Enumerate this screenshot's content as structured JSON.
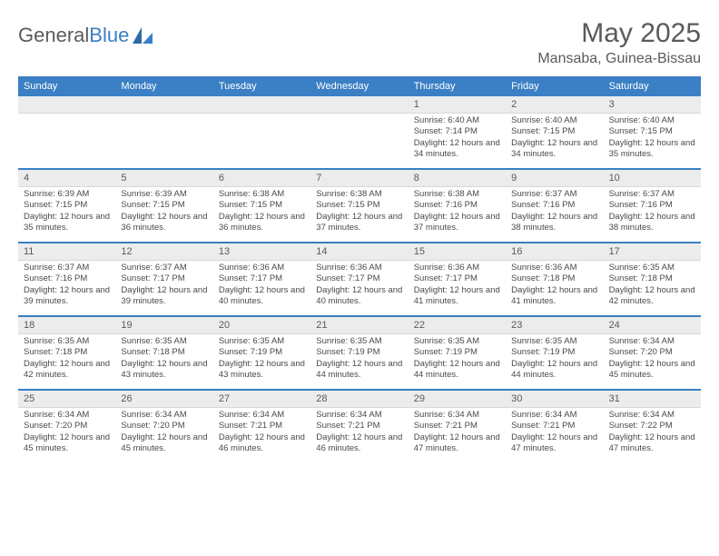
{
  "brand": {
    "name_part1": "General",
    "name_part2": "Blue"
  },
  "title": "May 2025",
  "location": "Mansaba, Guinea-Bissau",
  "weekdays": [
    "Sunday",
    "Monday",
    "Tuesday",
    "Wednesday",
    "Thursday",
    "Friday",
    "Saturday"
  ],
  "colors": {
    "header_bg": "#3b7fc4",
    "header_fg": "#ffffff",
    "daynum_bg": "#ececec",
    "rule": "#3b7fc4",
    "text": "#4a4a4a"
  },
  "grid": {
    "rows": 5,
    "cols": 7,
    "start_weekday_index": 4,
    "days_in_month": 31
  },
  "days": [
    {
      "n": 1,
      "sunrise": "6:40 AM",
      "sunset": "7:14 PM",
      "daylight": "12 hours and 34 minutes."
    },
    {
      "n": 2,
      "sunrise": "6:40 AM",
      "sunset": "7:15 PM",
      "daylight": "12 hours and 34 minutes."
    },
    {
      "n": 3,
      "sunrise": "6:40 AM",
      "sunset": "7:15 PM",
      "daylight": "12 hours and 35 minutes."
    },
    {
      "n": 4,
      "sunrise": "6:39 AM",
      "sunset": "7:15 PM",
      "daylight": "12 hours and 35 minutes."
    },
    {
      "n": 5,
      "sunrise": "6:39 AM",
      "sunset": "7:15 PM",
      "daylight": "12 hours and 36 minutes."
    },
    {
      "n": 6,
      "sunrise": "6:38 AM",
      "sunset": "7:15 PM",
      "daylight": "12 hours and 36 minutes."
    },
    {
      "n": 7,
      "sunrise": "6:38 AM",
      "sunset": "7:15 PM",
      "daylight": "12 hours and 37 minutes."
    },
    {
      "n": 8,
      "sunrise": "6:38 AM",
      "sunset": "7:16 PM",
      "daylight": "12 hours and 37 minutes."
    },
    {
      "n": 9,
      "sunrise": "6:37 AM",
      "sunset": "7:16 PM",
      "daylight": "12 hours and 38 minutes."
    },
    {
      "n": 10,
      "sunrise": "6:37 AM",
      "sunset": "7:16 PM",
      "daylight": "12 hours and 38 minutes."
    },
    {
      "n": 11,
      "sunrise": "6:37 AM",
      "sunset": "7:16 PM",
      "daylight": "12 hours and 39 minutes."
    },
    {
      "n": 12,
      "sunrise": "6:37 AM",
      "sunset": "7:17 PM",
      "daylight": "12 hours and 39 minutes."
    },
    {
      "n": 13,
      "sunrise": "6:36 AM",
      "sunset": "7:17 PM",
      "daylight": "12 hours and 40 minutes."
    },
    {
      "n": 14,
      "sunrise": "6:36 AM",
      "sunset": "7:17 PM",
      "daylight": "12 hours and 40 minutes."
    },
    {
      "n": 15,
      "sunrise": "6:36 AM",
      "sunset": "7:17 PM",
      "daylight": "12 hours and 41 minutes."
    },
    {
      "n": 16,
      "sunrise": "6:36 AM",
      "sunset": "7:18 PM",
      "daylight": "12 hours and 41 minutes."
    },
    {
      "n": 17,
      "sunrise": "6:35 AM",
      "sunset": "7:18 PM",
      "daylight": "12 hours and 42 minutes."
    },
    {
      "n": 18,
      "sunrise": "6:35 AM",
      "sunset": "7:18 PM",
      "daylight": "12 hours and 42 minutes."
    },
    {
      "n": 19,
      "sunrise": "6:35 AM",
      "sunset": "7:18 PM",
      "daylight": "12 hours and 43 minutes."
    },
    {
      "n": 20,
      "sunrise": "6:35 AM",
      "sunset": "7:19 PM",
      "daylight": "12 hours and 43 minutes."
    },
    {
      "n": 21,
      "sunrise": "6:35 AM",
      "sunset": "7:19 PM",
      "daylight": "12 hours and 44 minutes."
    },
    {
      "n": 22,
      "sunrise": "6:35 AM",
      "sunset": "7:19 PM",
      "daylight": "12 hours and 44 minutes."
    },
    {
      "n": 23,
      "sunrise": "6:35 AM",
      "sunset": "7:19 PM",
      "daylight": "12 hours and 44 minutes."
    },
    {
      "n": 24,
      "sunrise": "6:34 AM",
      "sunset": "7:20 PM",
      "daylight": "12 hours and 45 minutes."
    },
    {
      "n": 25,
      "sunrise": "6:34 AM",
      "sunset": "7:20 PM",
      "daylight": "12 hours and 45 minutes."
    },
    {
      "n": 26,
      "sunrise": "6:34 AM",
      "sunset": "7:20 PM",
      "daylight": "12 hours and 45 minutes."
    },
    {
      "n": 27,
      "sunrise": "6:34 AM",
      "sunset": "7:21 PM",
      "daylight": "12 hours and 46 minutes."
    },
    {
      "n": 28,
      "sunrise": "6:34 AM",
      "sunset": "7:21 PM",
      "daylight": "12 hours and 46 minutes."
    },
    {
      "n": 29,
      "sunrise": "6:34 AM",
      "sunset": "7:21 PM",
      "daylight": "12 hours and 47 minutes."
    },
    {
      "n": 30,
      "sunrise": "6:34 AM",
      "sunset": "7:21 PM",
      "daylight": "12 hours and 47 minutes."
    },
    {
      "n": 31,
      "sunrise": "6:34 AM",
      "sunset": "7:22 PM",
      "daylight": "12 hours and 47 minutes."
    }
  ],
  "labels": {
    "sunrise": "Sunrise:",
    "sunset": "Sunset:",
    "daylight": "Daylight:"
  }
}
